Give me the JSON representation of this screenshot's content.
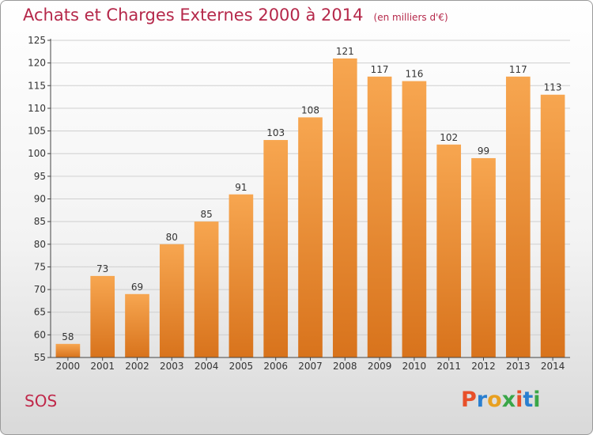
{
  "header": {
    "title": "Achats et Charges Externes 2000 à 2014",
    "subtitle": "(en milliers d'€)"
  },
  "footer": {
    "place": "SOS",
    "logo": {
      "letters": [
        "P",
        "r",
        "o",
        "x",
        "i",
        "t",
        "i"
      ],
      "colors": [
        "#e8502a",
        "#2a7fd0",
        "#e8a020",
        "#3aa648",
        "#e8502a",
        "#2a7fd0",
        "#3aa648"
      ]
    }
  },
  "colors": {
    "bar_top": "#f7a650",
    "bar_bottom": "#d8731c",
    "grid": "#cfcfcf",
    "axis": "#444444",
    "text": "#333333"
  },
  "chart_data": {
    "type": "bar",
    "categories": [
      "2000",
      "2001",
      "2002",
      "2003",
      "2004",
      "2005",
      "2006",
      "2007",
      "2008",
      "2009",
      "2010",
      "2011",
      "2012",
      "2013",
      "2014"
    ],
    "values": [
      58,
      73,
      69,
      80,
      85,
      91,
      103,
      108,
      121,
      117,
      116,
      102,
      99,
      117,
      113
    ],
    "ylim": [
      55,
      125
    ],
    "yticks": [
      55,
      60,
      65,
      70,
      75,
      80,
      85,
      90,
      95,
      100,
      105,
      110,
      115,
      120,
      125
    ],
    "title": "Achats et Charges Externes 2000 à 2014",
    "xlabel": "",
    "ylabel": "",
    "grid": true,
    "data_labels": true
  }
}
